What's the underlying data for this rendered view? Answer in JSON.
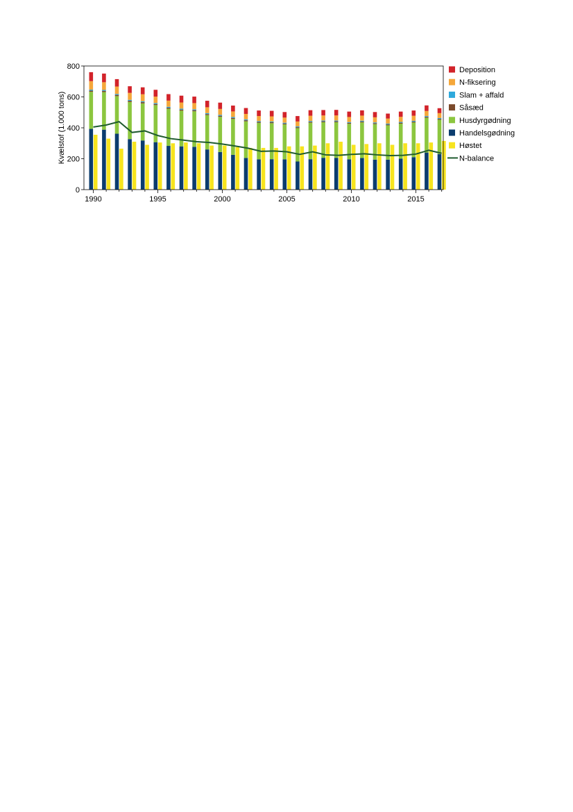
{
  "chart_data": {
    "type": "bar",
    "subtype": "stacked-bar-with-paired-bar-and-line",
    "title": "",
    "xlabel": "",
    "ylabel": "Kvælstof (1.000 tons)",
    "ylim": [
      0,
      800
    ],
    "yticks": [
      0,
      200,
      400,
      600,
      800
    ],
    "xticks": [
      1990,
      1995,
      2000,
      2005,
      2010,
      2015
    ],
    "grid": false,
    "legend_position": "right",
    "x": [
      1990,
      1991,
      1992,
      1993,
      1994,
      1995,
      1996,
      1997,
      1998,
      1999,
      2000,
      2001,
      2002,
      2003,
      2004,
      2005,
      2006,
      2007,
      2008,
      2009,
      2010,
      2011,
      2012,
      2013,
      2014,
      2015,
      2016,
      2017
    ],
    "stack_series": [
      {
        "name": "Handelsgødning",
        "color": "#0b3c6e",
        "values": [
          393,
          388,
          362,
          327,
          318,
          307,
          283,
          280,
          277,
          260,
          243,
          225,
          205,
          196,
          197,
          196,
          182,
          197,
          206,
          206,
          196,
          205,
          194,
          194,
          200,
          210,
          240,
          230
        ]
      },
      {
        "name": "Husdyrgødning",
        "color": "#8cc63f",
        "values": [
          240,
          243,
          243,
          240,
          240,
          240,
          240,
          231,
          230,
          222,
          228,
          232,
          237,
          236,
          233,
          226,
          216,
          236,
          230,
          230,
          230,
          230,
          230,
          222,
          227,
          224,
          225,
          222
        ]
      },
      {
        "name": "Såsæd",
        "color": "#7b4a2b",
        "values": [
          8,
          8,
          8,
          8,
          8,
          7,
          7,
          7,
          7,
          7,
          7,
          7,
          7,
          6,
          6,
          6,
          6,
          6,
          6,
          6,
          6,
          6,
          6,
          6,
          6,
          6,
          6,
          6
        ]
      },
      {
        "name": "Slam + affald",
        "color": "#2ea9dc",
        "values": [
          6,
          6,
          6,
          6,
          6,
          6,
          6,
          6,
          6,
          6,
          6,
          6,
          6,
          5,
          5,
          5,
          5,
          5,
          5,
          5,
          5,
          5,
          5,
          5,
          5,
          5,
          5,
          5
        ]
      },
      {
        "name": "N-fiksering",
        "color": "#f5a73a",
        "values": [
          55,
          50,
          48,
          45,
          45,
          42,
          40,
          40,
          40,
          38,
          38,
          36,
          35,
          33,
          33,
          33,
          32,
          34,
          33,
          33,
          33,
          33,
          33,
          33,
          33,
          33,
          33,
          32
        ]
      },
      {
        "name": "Deposition",
        "color": "#d2232a",
        "values": [
          58,
          56,
          48,
          43,
          45,
          44,
          42,
          44,
          42,
          42,
          41,
          38,
          38,
          36,
          36,
          36,
          35,
          36,
          35,
          36,
          35,
          34,
          34,
          32,
          34,
          34,
          36,
          32
        ]
      }
    ],
    "bar_series": {
      "name": "Høstet",
      "color": "#f7e41e",
      "values": [
        355,
        330,
        265,
        310,
        290,
        305,
        300,
        305,
        300,
        285,
        285,
        275,
        270,
        270,
        270,
        280,
        280,
        285,
        300,
        310,
        290,
        295,
        300,
        290,
        300,
        300,
        305,
        315
      ]
    },
    "line_series": {
      "name": "N-balance",
      "color": "#1f5b2e",
      "values": [
        405,
        418,
        440,
        370,
        380,
        350,
        330,
        320,
        310,
        305,
        295,
        282,
        268,
        248,
        250,
        245,
        228,
        245,
        225,
        222,
        228,
        232,
        225,
        220,
        222,
        230,
        255,
        235
      ]
    },
    "legend": [
      "Deposition",
      "N-fiksering",
      "Slam + affald",
      "Såsæd",
      "Husdyrgødning",
      "Handelsgødning",
      "Høstet",
      "N-balance"
    ]
  }
}
